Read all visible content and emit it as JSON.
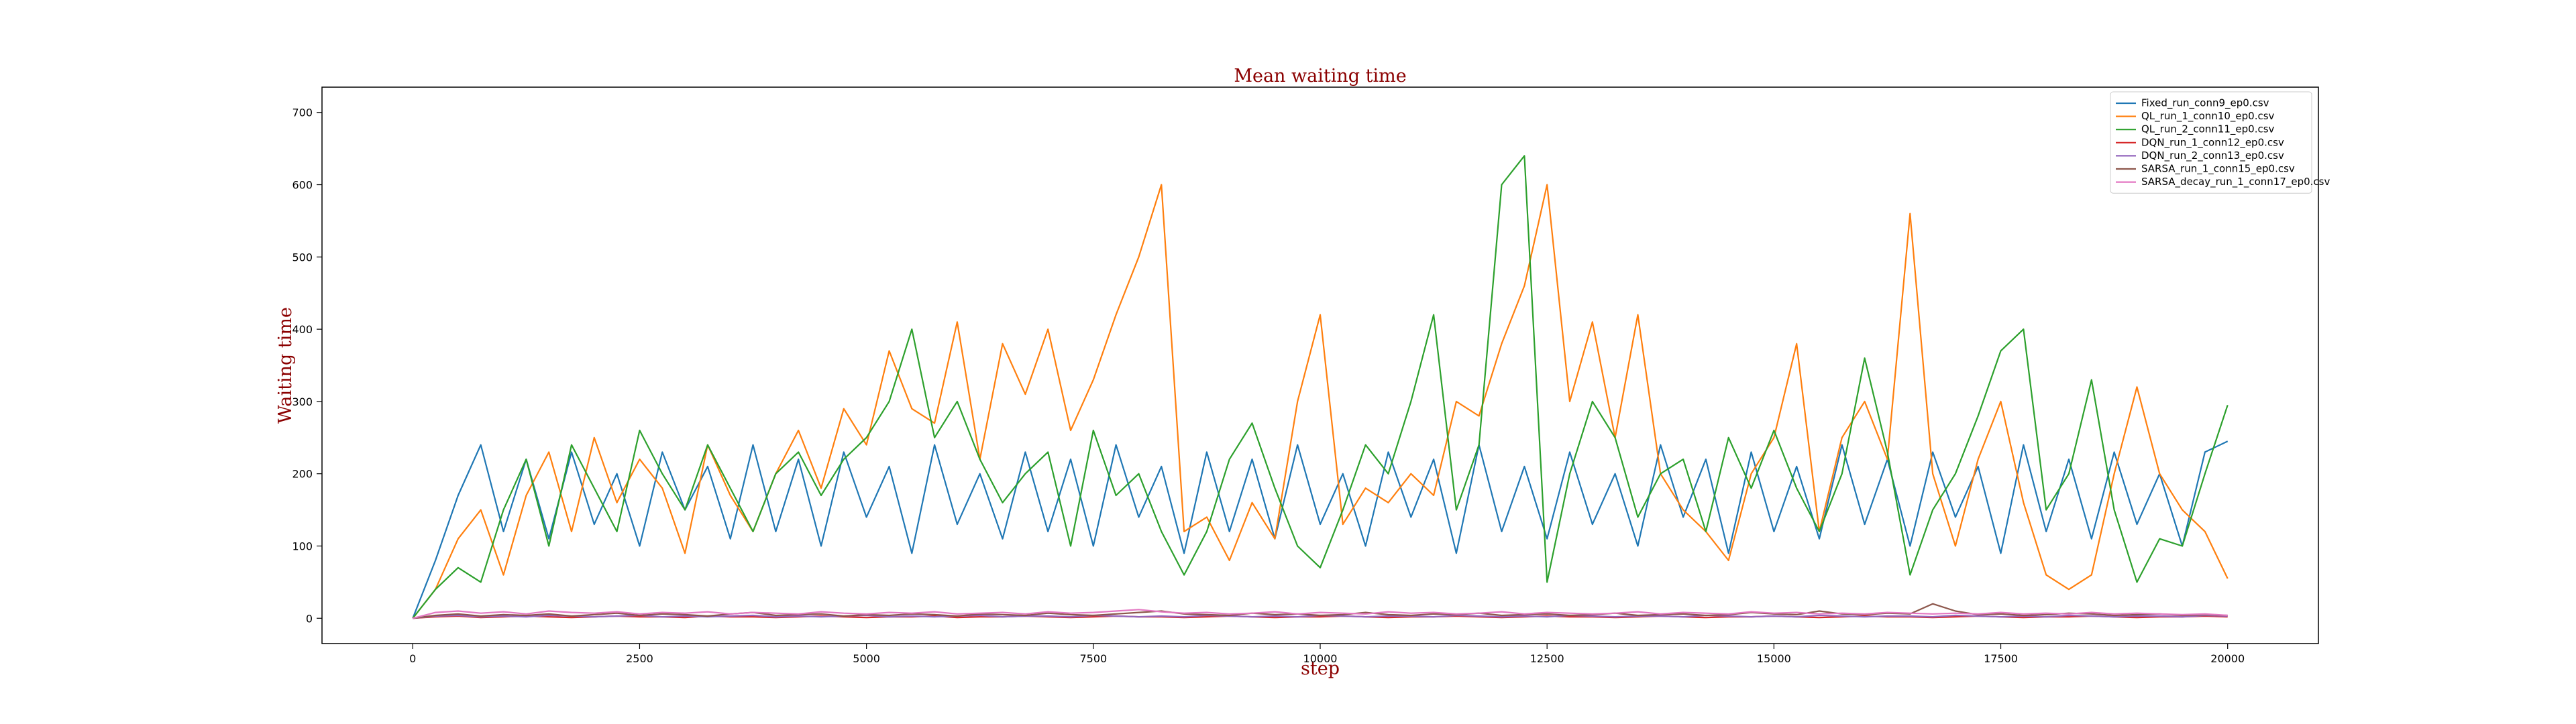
{
  "chart_data": {
    "type": "line",
    "title": "Mean waiting time",
    "x_label": "step",
    "y_label": "Waiting time",
    "x": [
      0,
      250,
      500,
      750,
      1000,
      1250,
      1500,
      1750,
      2000,
      2250,
      2500,
      2750,
      3000,
      3250,
      3500,
      3750,
      4000,
      4250,
      4500,
      4750,
      5000,
      5250,
      5500,
      5750,
      6000,
      6250,
      6500,
      6750,
      7000,
      7250,
      7500,
      7750,
      8000,
      8250,
      8500,
      8750,
      9000,
      9250,
      9500,
      9750,
      10000,
      10250,
      10500,
      10750,
      11000,
      11250,
      11500,
      11750,
      12000,
      12250,
      12500,
      12750,
      13000,
      13250,
      13500,
      13750,
      14000,
      14250,
      14500,
      14750,
      15000,
      15250,
      15500,
      15750,
      16000,
      16250,
      16500,
      16750,
      17000,
      17250,
      17500,
      17750,
      18000,
      18250,
      18500,
      18750,
      19000,
      19250,
      19500,
      19750,
      20000
    ],
    "xlim": [
      -1000,
      21000
    ],
    "xticks": [
      0,
      2500,
      5000,
      7500,
      10000,
      12500,
      15000,
      17500,
      20000
    ],
    "ylim": [
      -35,
      735
    ],
    "yticks": [
      0,
      100,
      200,
      300,
      400,
      500,
      600,
      700
    ],
    "legend": "upper right",
    "series": [
      {
        "name": "Fixed_run_conn9_ep0.csv",
        "color": "#1f77b4",
        "values": [
          0,
          80,
          170,
          240,
          120,
          220,
          110,
          230,
          130,
          200,
          100,
          230,
          150,
          210,
          110,
          240,
          120,
          220,
          100,
          230,
          140,
          210,
          90,
          240,
          130,
          200,
          110,
          230,
          120,
          220,
          100,
          240,
          140,
          210,
          90,
          230,
          120,
          220,
          110,
          240,
          130,
          200,
          100,
          230,
          140,
          220,
          90,
          240,
          120,
          210,
          110,
          230,
          130,
          200,
          100,
          240,
          140,
          220,
          90,
          230,
          120,
          210,
          110,
          240,
          130,
          220,
          100,
          230,
          140,
          210,
          90,
          240,
          120,
          220,
          110,
          230,
          130,
          200,
          100,
          230,
          245
        ]
      },
      {
        "name": "QL_run_1_conn10_ep0.csv",
        "color": "#ff7f0e",
        "values": [
          0,
          40,
          110,
          150,
          60,
          170,
          230,
          120,
          250,
          160,
          220,
          180,
          90,
          240,
          170,
          120,
          200,
          260,
          180,
          290,
          240,
          370,
          290,
          270,
          410,
          220,
          380,
          310,
          400,
          260,
          330,
          420,
          500,
          600,
          120,
          140,
          80,
          160,
          110,
          300,
          420,
          130,
          180,
          160,
          200,
          170,
          300,
          280,
          380,
          460,
          600,
          300,
          410,
          250,
          420,
          200,
          150,
          120,
          80,
          200,
          250,
          380,
          120,
          250,
          300,
          220,
          560,
          200,
          100,
          220,
          300,
          160,
          60,
          40,
          60,
          200,
          320,
          200,
          150,
          120,
          55
        ]
      },
      {
        "name": "QL_run_2_conn11_ep0.csv",
        "color": "#2ca02c",
        "values": [
          0,
          40,
          70,
          50,
          150,
          220,
          100,
          240,
          180,
          120,
          260,
          200,
          150,
          240,
          180,
          120,
          200,
          230,
          170,
          220,
          250,
          300,
          400,
          250,
          300,
          220,
          160,
          200,
          230,
          100,
          260,
          170,
          200,
          120,
          60,
          120,
          220,
          270,
          180,
          100,
          70,
          150,
          240,
          200,
          300,
          420,
          150,
          240,
          600,
          640,
          50,
          200,
          300,
          250,
          140,
          200,
          220,
          120,
          250,
          180,
          260,
          180,
          120,
          200,
          360,
          230,
          60,
          150,
          200,
          280,
          370,
          400,
          150,
          200,
          330,
          150,
          50,
          110,
          100,
          200,
          295
        ]
      },
      {
        "name": "DQN_run_1_conn12_ep0.csv",
        "color": "#d62728",
        "values": [
          0,
          2,
          3,
          1,
          2,
          3,
          2,
          1,
          2,
          3,
          2,
          2,
          1,
          3,
          2,
          2,
          1,
          2,
          3,
          2,
          1,
          2,
          2,
          3,
          1,
          2,
          2,
          3,
          2,
          1,
          2,
          3,
          2,
          2,
          1,
          2,
          3,
          2,
          1,
          2,
          2,
          3,
          2,
          1,
          2,
          2,
          3,
          2,
          1,
          2,
          3,
          2,
          2,
          1,
          2,
          3,
          2,
          1,
          2,
          2,
          3,
          2,
          1,
          2,
          3,
          2,
          2,
          1,
          2,
          3,
          2,
          1,
          2,
          2,
          3,
          2,
          1,
          2,
          2,
          3,
          2
        ]
      },
      {
        "name": "DQN_run_2_conn13_ep0.csv",
        "color": "#9467bd",
        "values": [
          0,
          3,
          4,
          2,
          3,
          2,
          4,
          3,
          2,
          3,
          4,
          2,
          3,
          2,
          3,
          4,
          2,
          3,
          2,
          3,
          4,
          2,
          3,
          2,
          3,
          4,
          2,
          3,
          3,
          2,
          4,
          3,
          2,
          3,
          2,
          4,
          3,
          2,
          3,
          2,
          4,
          3,
          2,
          3,
          3,
          2,
          4,
          3,
          2,
          3,
          2,
          4,
          3,
          2,
          3,
          3,
          2,
          4,
          3,
          2,
          3,
          2,
          4,
          3,
          2,
          3,
          3,
          2,
          4,
          3,
          2,
          3,
          2,
          4,
          3,
          2,
          3,
          3,
          2,
          4,
          3
        ]
      },
      {
        "name": "SARSA_run_1_conn15_ep0.csv",
        "color": "#8c564b",
        "values": [
          0,
          4,
          6,
          3,
          5,
          4,
          6,
          3,
          5,
          7,
          4,
          6,
          5,
          3,
          6,
          8,
          4,
          5,
          6,
          3,
          5,
          4,
          6,
          5,
          3,
          6,
          5,
          4,
          7,
          5,
          4,
          6,
          8,
          10,
          6,
          5,
          4,
          7,
          5,
          6,
          4,
          5,
          8,
          5,
          4,
          6,
          5,
          7,
          4,
          5,
          6,
          4,
          5,
          7,
          4,
          5,
          6,
          4,
          5,
          8,
          6,
          5,
          10,
          6,
          5,
          7,
          6,
          20,
          10,
          5,
          6,
          4,
          5,
          7,
          6,
          4,
          5,
          6,
          4,
          5,
          4
        ]
      },
      {
        "name": "SARSA_decay_run_1_conn17_ep0.csv",
        "color": "#e377c2",
        "values": [
          0,
          8,
          10,
          7,
          9,
          6,
          10,
          8,
          7,
          9,
          6,
          8,
          7,
          9,
          6,
          8,
          7,
          6,
          9,
          7,
          6,
          8,
          7,
          9,
          6,
          7,
          8,
          6,
          9,
          7,
          8,
          10,
          12,
          9,
          7,
          8,
          6,
          7,
          9,
          6,
          8,
          7,
          6,
          9,
          7,
          8,
          6,
          7,
          9,
          6,
          8,
          7,
          6,
          7,
          9,
          6,
          8,
          7,
          6,
          9,
          7,
          8,
          6,
          7,
          6,
          8,
          7,
          6,
          7,
          6,
          8,
          6,
          7,
          6,
          8,
          6,
          7,
          6,
          5,
          6,
          4
        ]
      }
    ]
  }
}
